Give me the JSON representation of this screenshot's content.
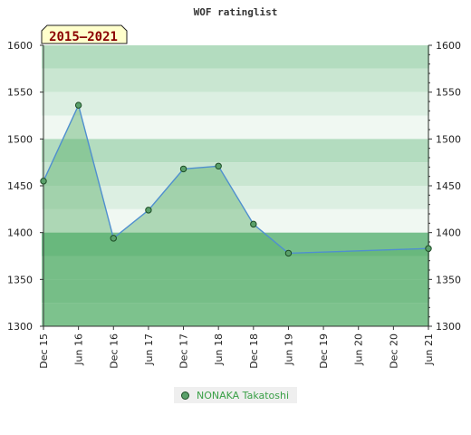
{
  "chart_data": {
    "type": "area",
    "title": "WOF ratinglist",
    "period_badge": "2015–2021",
    "x_tick_labels": [
      "Dec 15",
      "Jun 16",
      "Dec 16",
      "Jun 17",
      "Dec 17",
      "Jun 18",
      "Dec 18",
      "Jun 19",
      "Dec 19",
      "Jun 20",
      "Dec 20",
      "Jun 21"
    ],
    "y_ticks": [
      1300,
      1350,
      1400,
      1450,
      1500,
      1550,
      1600
    ],
    "ylim": [
      1300,
      1600
    ],
    "y_axis_both_sides": true,
    "series": [
      {
        "name": "NONAKA Takatoshi",
        "x": [
          "Dec 15",
          "Jun 16",
          "Dec 16",
          "Jun 17",
          "Dec 17",
          "Jun 18",
          "Dec 18",
          "Jun 19",
          "Jun 21"
        ],
        "values": [
          1455,
          1536,
          1394,
          1424,
          1468,
          1471,
          1409,
          1378,
          1383
        ],
        "line_color": "#4f8fcf",
        "fill_color": "#5ab06a",
        "marker_color": "#5aa06a"
      }
    ],
    "bands": [
      {
        "from": 1575,
        "to": 1600,
        "color": "#b3dcbf"
      },
      {
        "from": 1550,
        "to": 1575,
        "color": "#c9e6d1"
      },
      {
        "from": 1525,
        "to": 1550,
        "color": "#dcefe2"
      },
      {
        "from": 1500,
        "to": 1525,
        "color": "#f0f8f2"
      },
      {
        "from": 1475,
        "to": 1500,
        "color": "#b3dcbf"
      },
      {
        "from": 1450,
        "to": 1475,
        "color": "#c9e6d1"
      },
      {
        "from": 1425,
        "to": 1450,
        "color": "#dcefe2"
      },
      {
        "from": 1400,
        "to": 1425,
        "color": "#f0f8f2"
      },
      {
        "from": 1375,
        "to": 1400,
        "color": "#76bf8c"
      },
      {
        "from": 1350,
        "to": 1375,
        "color": "#8cca9f"
      },
      {
        "from": 1325,
        "to": 1350,
        "color": "#8cca9f"
      },
      {
        "from": 1300,
        "to": 1325,
        "color": "#9ad1aa"
      }
    ],
    "legend": {
      "label": "NONAKA Takatoshi",
      "position": "bottom-center"
    }
  }
}
